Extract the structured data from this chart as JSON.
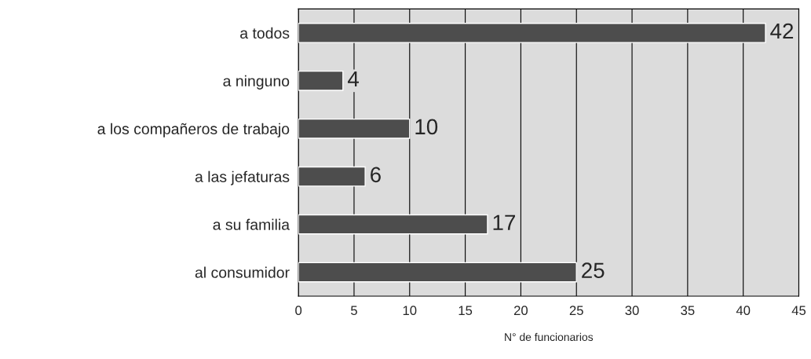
{
  "chart_data": {
    "type": "bar",
    "orientation": "horizontal",
    "xlabel": "N° de funcionarios",
    "categories": [
      "a todos",
      "a ninguno",
      "a los compañeros de trabajo",
      "a las jefaturas",
      "a su familia",
      "al consumidor"
    ],
    "values": [
      42,
      4,
      10,
      6,
      17,
      25
    ],
    "color": "#4d4d4d",
    "xlim": [
      0,
      45
    ],
    "xticks": [
      0,
      5,
      10,
      15,
      20,
      25,
      30,
      35,
      40,
      45
    ],
    "grid": "x",
    "data_labels": true
  }
}
